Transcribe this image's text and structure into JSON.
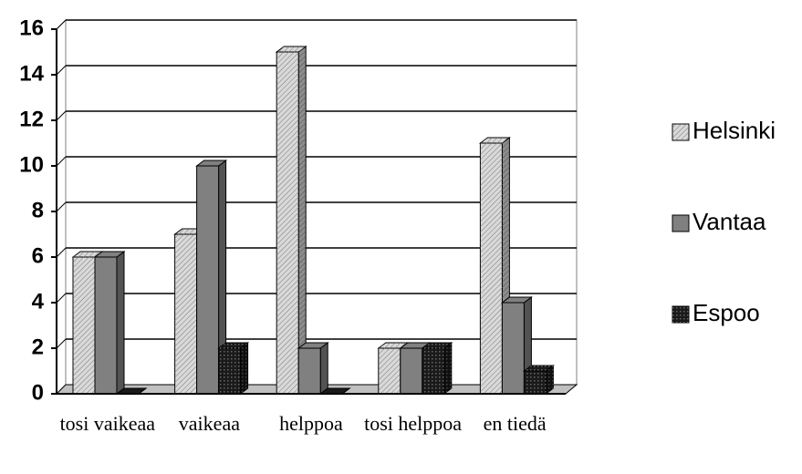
{
  "chart_data": {
    "type": "bar3d",
    "categories": [
      "tosi vaikeaa",
      "vaikeaa",
      "helppoa",
      "tosi helppoa",
      "en tiedä"
    ],
    "series": [
      {
        "name": "Helsinki",
        "color": "#d9d9d9",
        "values": [
          6,
          7,
          15,
          2,
          11
        ]
      },
      {
        "name": "Vantaa",
        "color": "#808080",
        "values": [
          6,
          10,
          2,
          2,
          4
        ]
      },
      {
        "name": "Espoo",
        "color": "#1a1a1a",
        "values": [
          0,
          2,
          0,
          2,
          1
        ]
      }
    ],
    "ylim": [
      0,
      16
    ],
    "yticks": [
      0,
      2,
      4,
      6,
      8,
      10,
      12,
      14,
      16
    ],
    "grid": true,
    "legend": "right"
  }
}
